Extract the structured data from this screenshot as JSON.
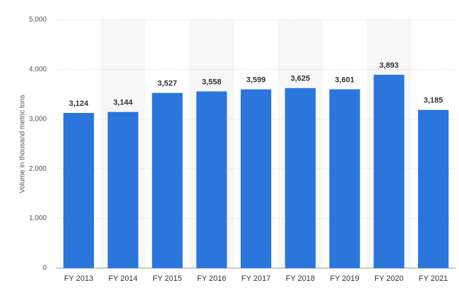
{
  "chart_data": {
    "type": "bar",
    "y_axis_label": "Volume in thousand metric tons",
    "categories": [
      "FY 2013",
      "FY 2014",
      "FY 2015",
      "FY 2016",
      "FY 2017",
      "FY 2018",
      "FY 2019",
      "FY 2020",
      "FY 2021"
    ],
    "values": [
      3124,
      3144,
      3527,
      3558,
      3599,
      3625,
      3601,
      3893,
      3185
    ],
    "value_labels": [
      "3,124",
      "3,144",
      "3,527",
      "3,558",
      "3,599",
      "3,625",
      "3,601",
      "3,893",
      "3,185"
    ],
    "color": "#2a76dd",
    "ylim": [
      0,
      5000
    ],
    "yticks": [
      0,
      {
        "value": 1000,
        "label": "1,000"
      },
      {
        "value": 2000,
        "label": "2,000"
      },
      {
        "value": 3000,
        "label": "3,000"
      },
      {
        "value": 4000,
        "label": "4,000"
      },
      {
        "value": 5000,
        "label": "5,000"
      }
    ],
    "grid": true
  }
}
